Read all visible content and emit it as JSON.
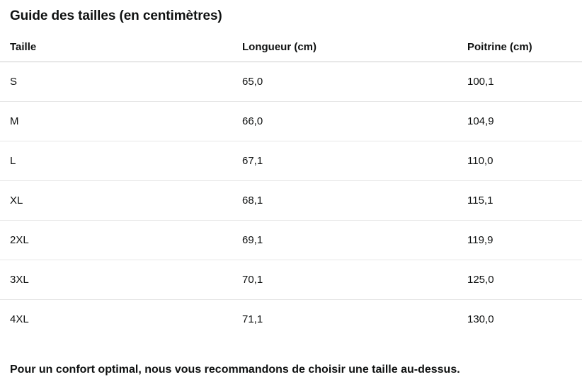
{
  "title": "Guide des tailles (en centimètres)",
  "table": {
    "columns": [
      "Taille",
      "Longueur (cm)",
      "Poitrine (cm)"
    ],
    "rows": [
      {
        "taille": "S",
        "longueur": "65,0",
        "poitrine": "100,1"
      },
      {
        "taille": "M",
        "longueur": "66,0",
        "poitrine": "104,9"
      },
      {
        "taille": "L",
        "longueur": "67,1",
        "poitrine": "110,0"
      },
      {
        "taille": "XL",
        "longueur": "68,1",
        "poitrine": "115,1"
      },
      {
        "taille": "2XL",
        "longueur": "69,1",
        "poitrine": "119,9"
      },
      {
        "taille": "3XL",
        "longueur": "70,1",
        "poitrine": "125,0"
      },
      {
        "taille": "4XL",
        "longueur": "71,1",
        "poitrine": "130,0"
      }
    ]
  },
  "footer_note": "Pour un confort optimal, nous vous recommandons de choisir une taille au-dessus.",
  "colors": {
    "text": "#0f1111",
    "background": "#ffffff",
    "header_border": "#cccccc",
    "row_border": "#e7e7e7"
  }
}
